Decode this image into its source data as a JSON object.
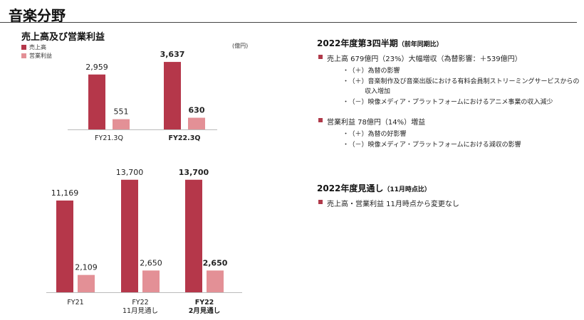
{
  "page": {
    "title": "音楽分野"
  },
  "colors": {
    "sales": "#b5374a",
    "op_income": "#e39096",
    "bullet": "#b03a4a"
  },
  "chart_data": [
    {
      "type": "bar",
      "title": "売上高及び営業利益",
      "unit": "(億円)",
      "legend": [
        "売上高",
        "営業利益"
      ],
      "categories": [
        "FY21.3Q",
        "FY22.3Q"
      ],
      "bold_categories": [
        false,
        true
      ],
      "series": [
        {
          "name": "売上高",
          "values": [
            2959,
            3637
          ],
          "labels": [
            "2,959",
            "3,637"
          ]
        },
        {
          "name": "営業利益",
          "values": [
            551,
            630
          ],
          "labels": [
            "551",
            "630"
          ]
        }
      ],
      "ylim": [
        0,
        4000
      ]
    },
    {
      "type": "bar",
      "categories": [
        [
          "FY21"
        ],
        [
          "FY22",
          "11月見通し"
        ],
        [
          "FY22",
          "2月見通し"
        ]
      ],
      "bold_categories": [
        false,
        false,
        true
      ],
      "series": [
        {
          "name": "売上高",
          "values": [
            11169,
            13700,
            13700
          ],
          "labels": [
            "11,169",
            "13,700",
            "13,700"
          ]
        },
        {
          "name": "営業利益",
          "values": [
            2109,
            2650,
            2650
          ],
          "labels": [
            "2,109",
            "2,650",
            "2,650"
          ]
        }
      ],
      "ylim": [
        0,
        15000
      ]
    }
  ],
  "q3": {
    "title": "2022年度第3四半期",
    "title_suffix": "（前年同期比）",
    "sales_line": "売上高 679億円（23%）大幅増収（為替影響：＋539億円）",
    "sales_subs": [
      "（＋）為替の影響",
      "（＋）音楽制作及び音楽出版における有料会員制ストリーミングサービスからの",
      "（－）映像メディア・プラットフォームにおけるアニメ事業の収入減少"
    ],
    "sales_sub_cont": "収入増加",
    "op_line": "営業利益 78億円（14%）増益",
    "op_subs": [
      "（＋）為替の好影響",
      "（－）映像メディア・プラットフォームにおける減収の影響"
    ]
  },
  "outlook": {
    "title": "2022年度見通し",
    "title_suffix": "（11月時点比）",
    "line": "売上高・営業利益 11月時点から変更なし"
  }
}
